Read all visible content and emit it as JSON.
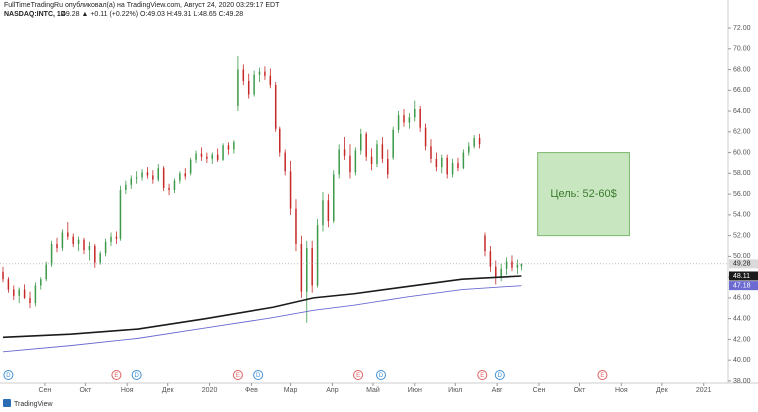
{
  "header": {
    "author_line": "FullTimeTradingRu опубликовал(а) на TradingView.com, Август 24, 2020 03:29:17 EDT",
    "symbol": "NASDAQ:INTC, 1D",
    "quote": "49.28 ▲ +0.11 (+0.22%) O:49.03 H:49.31 L:48.65 C:49.28"
  },
  "footer": {
    "logo": "TradingView"
  },
  "chart_data": {
    "type": "candlestick",
    "up_color": "#3c9a4a",
    "down_color": "#c62828",
    "grid": false,
    "xlim": [
      0,
      537
    ],
    "ylim": [
      37.8,
      74.7
    ],
    "xticks": [
      {
        "value": 31,
        "label": "Сен"
      },
      {
        "value": 61,
        "label": "Окт"
      },
      {
        "value": 92,
        "label": "Ноя"
      },
      {
        "value": 122,
        "label": "Дек"
      },
      {
        "value": 153,
        "label": "2020"
      },
      {
        "value": 184,
        "label": "Фев"
      },
      {
        "value": 213,
        "label": "Мар"
      },
      {
        "value": 244,
        "label": "Апр"
      },
      {
        "value": 274,
        "label": "Май"
      },
      {
        "value": 305,
        "label": "Июн"
      },
      {
        "value": 335,
        "label": "Июл"
      },
      {
        "value": 366,
        "label": "Авг"
      },
      {
        "value": 397,
        "label": "Сен"
      },
      {
        "value": 427,
        "label": "Окт"
      },
      {
        "value": 458,
        "label": "Ноя"
      },
      {
        "value": 488,
        "label": "Дек"
      },
      {
        "value": 519,
        "label": "2021"
      }
    ],
    "yticks": [
      {
        "value": 38,
        "label": "38.00"
      },
      {
        "value": 40,
        "label": "40.00"
      },
      {
        "value": 42,
        "label": "42.00"
      },
      {
        "value": 44,
        "label": "44.00"
      },
      {
        "value": 46,
        "label": "46.00"
      },
      {
        "value": 48,
        "label": "48.00"
      },
      {
        "value": 50,
        "label": "50.00"
      },
      {
        "value": 52,
        "label": "52.00"
      },
      {
        "value": 54,
        "label": "54.00"
      },
      {
        "value": 56,
        "label": "56.00"
      },
      {
        "value": 58,
        "label": "58.00"
      },
      {
        "value": 60,
        "label": "60.00"
      },
      {
        "value": 62,
        "label": "62.00"
      },
      {
        "value": 64,
        "label": "64.00"
      },
      {
        "value": 66,
        "label": "66.00"
      },
      {
        "value": 68,
        "label": "68.00"
      },
      {
        "value": 70,
        "label": "70.00"
      },
      {
        "value": 72,
        "label": "72.00"
      }
    ],
    "x": [
      0,
      4,
      8,
      12,
      16,
      20,
      24,
      28,
      32,
      36,
      40,
      44,
      48,
      52,
      56,
      60,
      64,
      68,
      72,
      76,
      80,
      84,
      87,
      91,
      95,
      99,
      103,
      107,
      111,
      115,
      119,
      123,
      127,
      131,
      135,
      139,
      143,
      147,
      151,
      155,
      159,
      163,
      167,
      171,
      174,
      178,
      182,
      186,
      190,
      194,
      198,
      202,
      205,
      209,
      213,
      217,
      221,
      225,
      229,
      233,
      237,
      241,
      245,
      249,
      253,
      257,
      261,
      265,
      269,
      273,
      277,
      281,
      285,
      289,
      293,
      297,
      301,
      305,
      309,
      313,
      317,
      321,
      325,
      329,
      333,
      337,
      341,
      345,
      349,
      353,
      357,
      361,
      365,
      369,
      373,
      377,
      381,
      384
    ],
    "open": [
      48.5,
      47.8,
      46.8,
      46.2,
      46.8,
      46.0,
      45.5,
      47.2,
      47.8,
      49.2,
      51.2,
      50.8,
      52.3,
      51.9,
      51.2,
      51.6,
      50.6,
      51.0,
      49.4,
      50.3,
      51.4,
      51.9,
      51.7,
      56.4,
      56.9,
      57.5,
      57.6,
      58.1,
      57.8,
      57.4,
      58.5,
      56.6,
      56.4,
      57.3,
      58.0,
      58.0,
      59.3,
      59.9,
      59.6,
      59.4,
      59.8,
      59.3,
      60.7,
      60.3,
      64.5,
      68.0,
      66.9,
      65.6,
      67.5,
      67.8,
      67.4,
      66.5,
      62.3,
      60.0,
      58.2,
      54.6,
      51.2,
      46.6,
      50.8,
      47.2,
      53.0,
      55.4,
      53.4,
      57.9,
      60.3,
      59.7,
      58.1,
      60.2,
      61.8,
      59.6,
      58.9,
      60.8,
      59.4,
      59.5,
      62.2,
      63.6,
      62.9,
      63.4,
      64.2,
      62.4,
      60.6,
      59.4,
      58.6,
      59.5,
      57.9,
      59.0,
      58.5,
      60.0,
      60.6,
      61.4,
      52.0,
      50.5,
      49.0,
      48.0,
      48.8,
      49.5,
      48.9,
      49.03
    ],
    "high": [
      49.0,
      48.0,
      47.2,
      47.0,
      47.3,
      46.6,
      47.5,
      48.0,
      49.5,
      51.5,
      51.8,
      52.6,
      53.3,
      52.2,
      51.9,
      51.8,
      51.4,
      51.2,
      50.5,
      51.7,
      52.3,
      52.4,
      56.8,
      57.3,
      57.8,
      58.2,
      58.4,
      58.6,
      58.3,
      58.9,
      58.7,
      57.0,
      57.5,
      58.2,
      58.5,
      59.5,
      60.2,
      60.5,
      60.0,
      60.0,
      60.4,
      60.9,
      61.0,
      61.2,
      69.3,
      68.5,
      67.6,
      67.9,
      68.2,
      68.3,
      68.1,
      66.8,
      62.5,
      60.3,
      59.2,
      55.5,
      52.0,
      51.5,
      51.5,
      53.6,
      56.2,
      56.0,
      58.3,
      60.8,
      61.5,
      60.8,
      60.5,
      62.3,
      62.0,
      60.4,
      61.2,
      61.5,
      60.3,
      62.5,
      64.0,
      64.2,
      63.8,
      65.0,
      64.5,
      62.8,
      61.3,
      60.0,
      59.8,
      59.8,
      59.4,
      59.5,
      60.3,
      61.0,
      61.7,
      61.8,
      52.3,
      51.0,
      49.6,
      49.3,
      49.9,
      50.1,
      49.7,
      49.31
    ],
    "low": [
      47.5,
      46.5,
      45.8,
      45.5,
      45.9,
      45.0,
      45.2,
      46.8,
      47.6,
      49.0,
      50.4,
      50.5,
      51.6,
      50.9,
      50.5,
      50.2,
      49.6,
      48.9,
      49.2,
      50.0,
      51.0,
      51.2,
      51.5,
      56.0,
      56.5,
      57.0,
      57.3,
      57.5,
      57.0,
      57.2,
      56.3,
      55.9,
      56.1,
      57.0,
      57.4,
      57.8,
      59.0,
      59.2,
      59.0,
      58.9,
      59.1,
      59.2,
      59.8,
      59.9,
      64.0,
      66.5,
      65.2,
      65.4,
      66.8,
      67.0,
      66.2,
      62.0,
      59.6,
      57.8,
      54.0,
      50.5,
      46.0,
      43.6,
      46.5,
      47.0,
      52.4,
      52.8,
      53.2,
      57.5,
      59.3,
      57.5,
      57.8,
      59.8,
      59.2,
      58.3,
      58.6,
      59.0,
      57.5,
      59.3,
      61.9,
      62.5,
      62.3,
      63.0,
      62.0,
      60.2,
      59.0,
      58.2,
      58.0,
      57.5,
      57.6,
      58.2,
      58.4,
      59.7,
      60.4,
      60.4,
      50.0,
      48.5,
      47.3,
      47.6,
      48.2,
      48.6,
      48.3,
      48.65
    ],
    "close": [
      47.8,
      46.8,
      46.2,
      46.8,
      46.0,
      45.5,
      47.2,
      47.8,
      49.2,
      51.2,
      50.8,
      52.3,
      51.9,
      51.2,
      51.6,
      50.6,
      51.0,
      49.4,
      50.3,
      51.4,
      51.9,
      51.7,
      56.4,
      56.9,
      57.5,
      57.6,
      58.1,
      57.8,
      57.4,
      58.5,
      56.6,
      56.4,
      57.3,
      58.0,
      57.7,
      59.3,
      59.9,
      59.6,
      59.4,
      59.8,
      59.3,
      60.7,
      60.3,
      61.0,
      68.0,
      66.9,
      65.6,
      67.5,
      67.8,
      67.4,
      66.5,
      62.3,
      60.0,
      58.2,
      54.6,
      51.2,
      46.6,
      50.8,
      47.2,
      53.0,
      55.4,
      53.4,
      57.9,
      60.3,
      59.7,
      58.1,
      60.2,
      61.8,
      59.6,
      58.9,
      60.8,
      59.4,
      57.9,
      62.2,
      63.6,
      62.9,
      63.4,
      64.2,
      62.4,
      60.6,
      59.4,
      58.6,
      59.5,
      57.9,
      59.0,
      58.5,
      60.0,
      60.6,
      61.4,
      60.8,
      50.5,
      49.0,
      48.0,
      48.8,
      49.5,
      48.9,
      49.2,
      49.28
    ],
    "lines": [
      {
        "color": "#1b1b1b",
        "x": [
          0,
          50,
          100,
          150,
          200,
          230,
          260,
          300,
          340,
          384
        ],
        "values": [
          42.2,
          42.5,
          43.0,
          44.0,
          45.1,
          46.0,
          46.4,
          47.1,
          47.8,
          48.11
        ]
      },
      {
        "color": "#6a6ad0",
        "x": [
          0,
          50,
          100,
          150,
          200,
          230,
          260,
          300,
          340,
          384
        ],
        "values": [
          40.8,
          41.4,
          42.1,
          43.1,
          44.1,
          44.8,
          45.3,
          46.1,
          46.8,
          47.18
        ]
      }
    ],
    "target_box": {
      "label": "Цель: 52-60$",
      "x": [
        396,
        464
      ],
      "y": [
        52,
        60
      ],
      "color": "#c8e6c0"
    },
    "events": [
      {
        "x": 4,
        "label": "D"
      },
      {
        "x": 99,
        "label": "D"
      },
      {
        "x": 189,
        "label": "D"
      },
      {
        "x": 280,
        "label": "D"
      },
      {
        "x": 368,
        "label": "D"
      },
      {
        "x": 84,
        "label": "E"
      },
      {
        "x": 174,
        "label": "E"
      },
      {
        "x": 263,
        "label": "E"
      },
      {
        "x": 355,
        "label": "E"
      },
      {
        "x": 444,
        "label": "E"
      }
    ]
  }
}
